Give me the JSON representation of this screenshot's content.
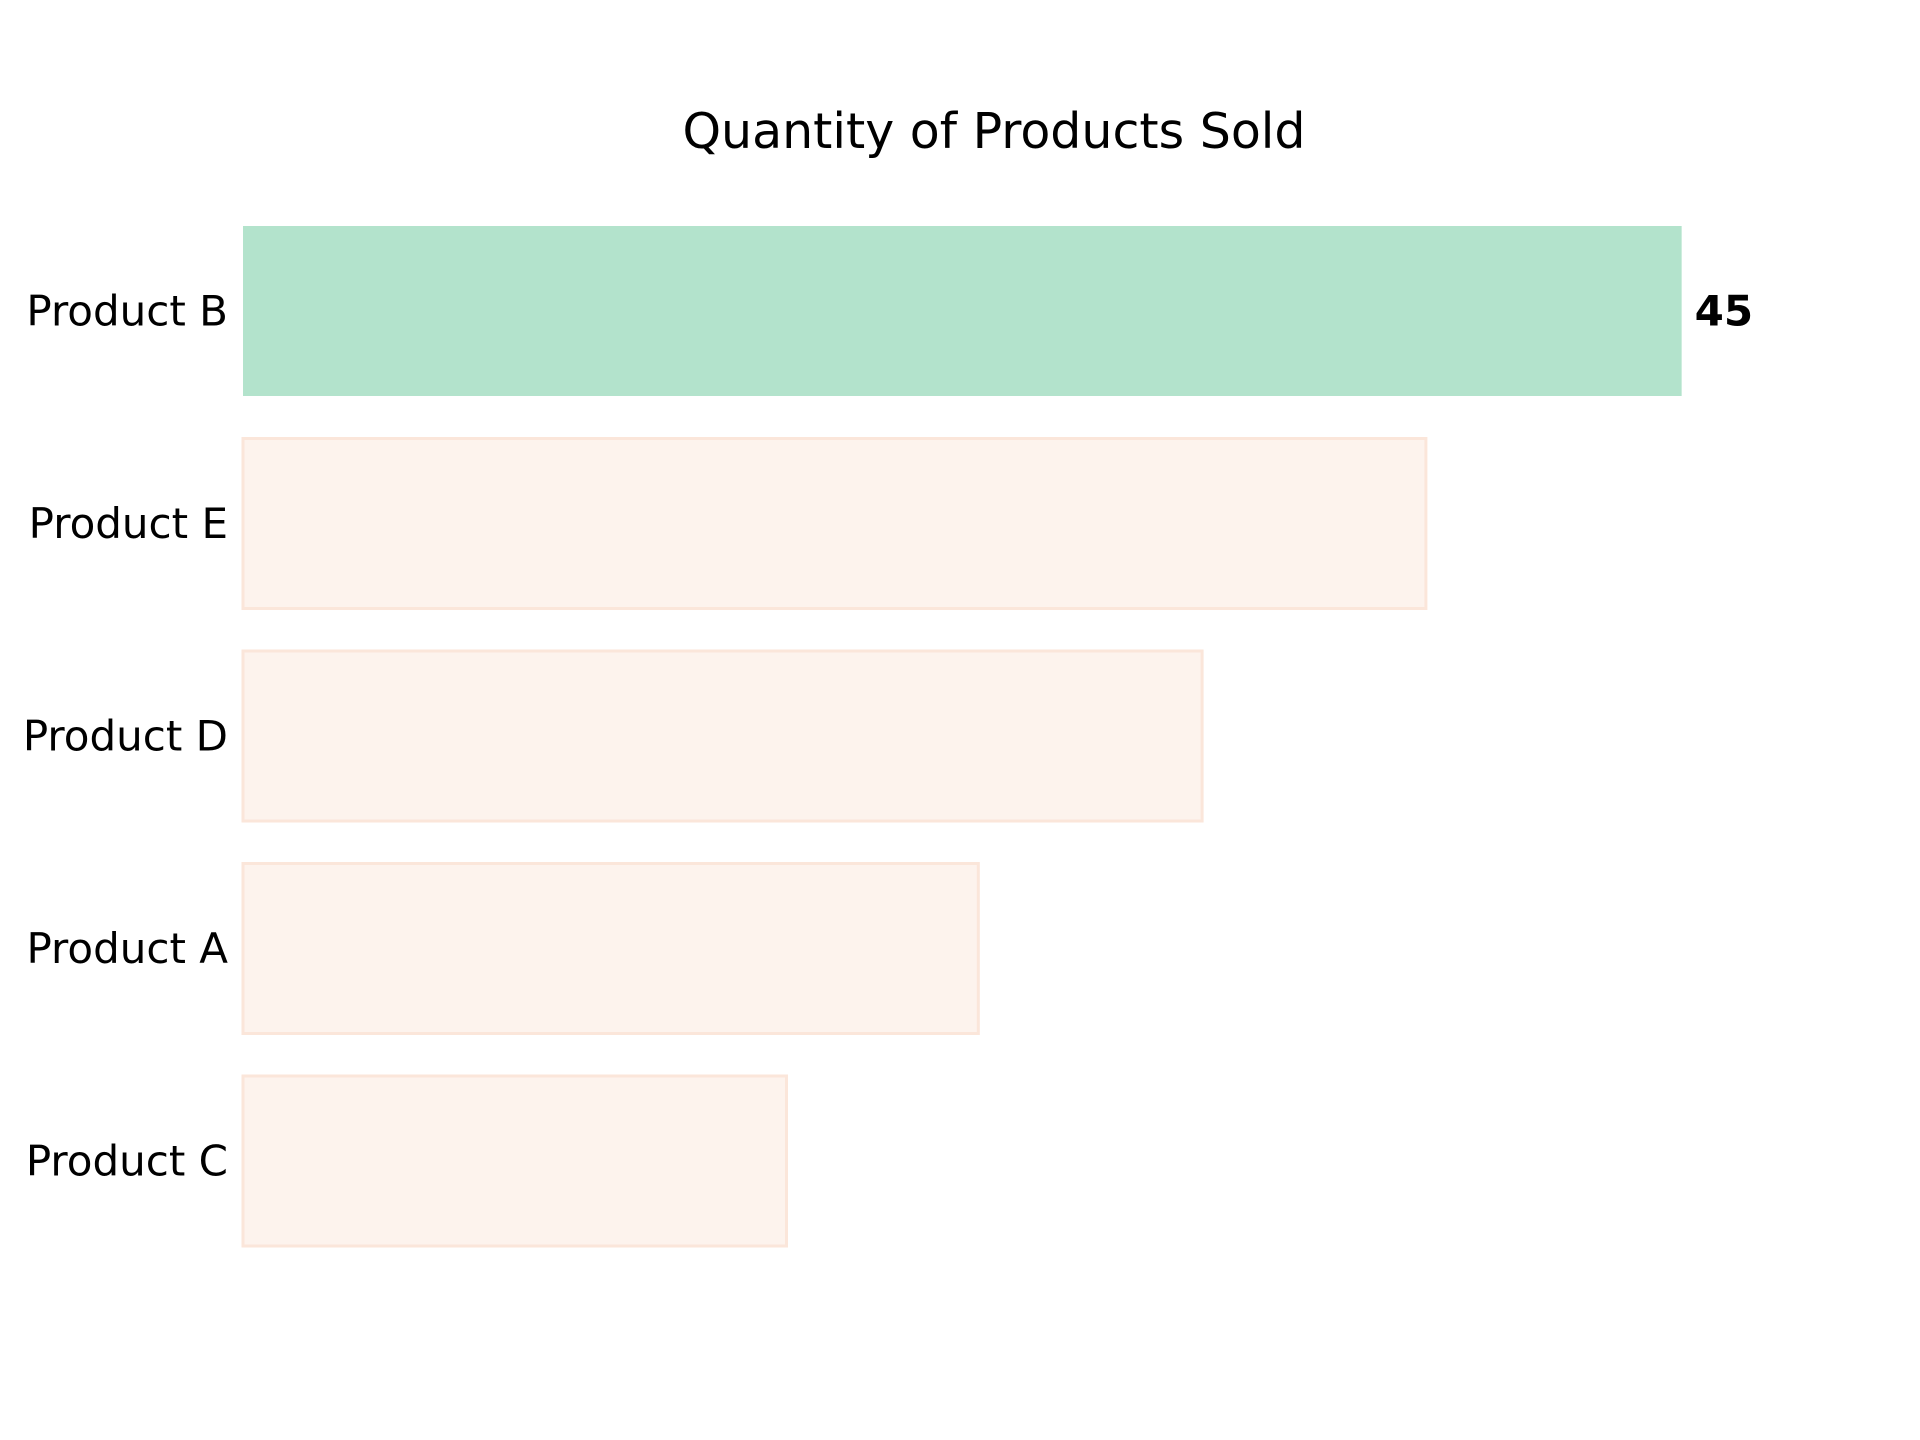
{
  "chart_data": {
    "type": "bar",
    "orientation": "horizontal",
    "title": "Quantity of Products Sold",
    "xlabel": "",
    "ylabel": "",
    "categories": [
      "Product B",
      "Product E",
      "Product D",
      "Product A",
      "Product C"
    ],
    "values": [
      45,
      37,
      30,
      23,
      17
    ],
    "highlighted_category": "Product B",
    "data_labels": [
      {
        "category": "Product B",
        "text": "45"
      }
    ],
    "xlim": [
      0,
      50
    ],
    "grid": false,
    "legend": "none",
    "axes_visible": false
  },
  "colors": {
    "highlight_fill": "#b3e3cc",
    "default_fill": "#fdf3ed",
    "default_edge": "#fbe6da",
    "text": "#000000",
    "background": "#ffffff"
  }
}
